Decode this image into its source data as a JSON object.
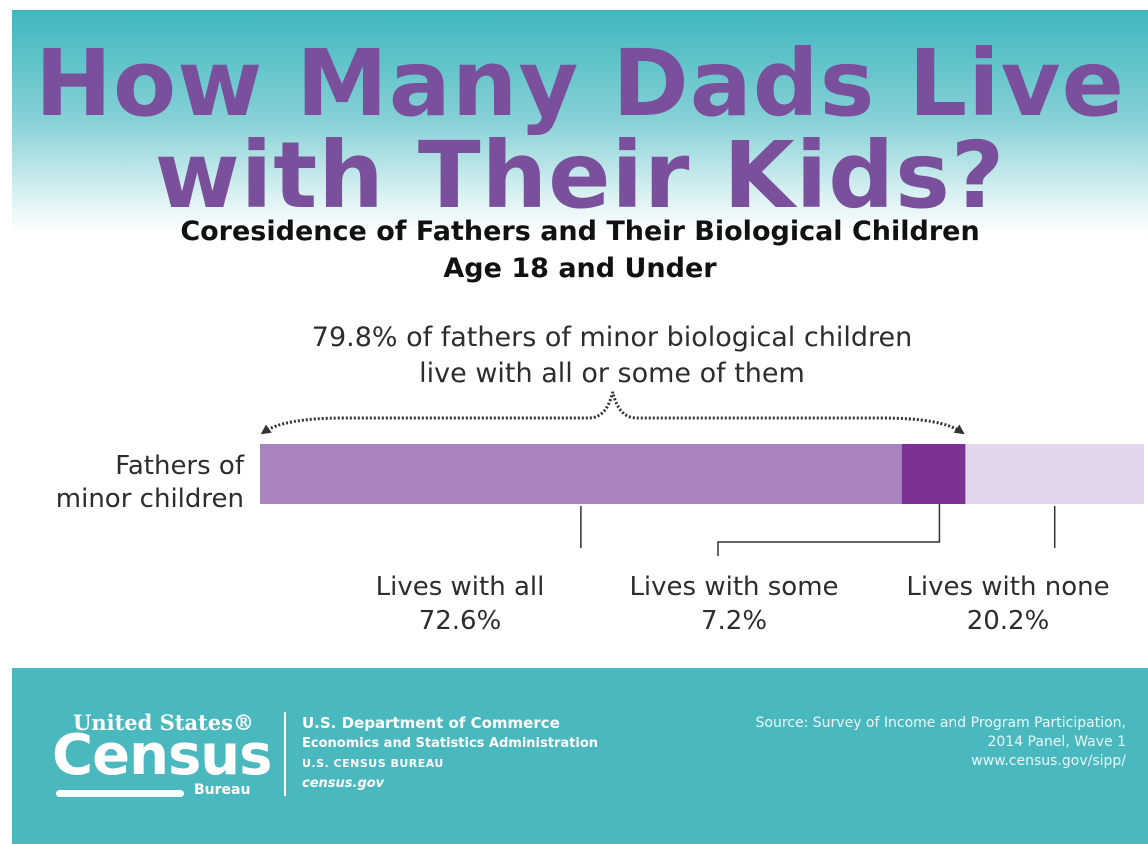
{
  "title": {
    "line1": "How Many Dads Live",
    "line2": "with Their Kids?"
  },
  "subtitle": {
    "line1": "Coresidence of Fathers and Their Biological Children",
    "line2": "Age 18 and Under"
  },
  "annotation": {
    "line1": "79.8% of fathers of minor biological children",
    "line2": "live with all or some of them"
  },
  "colors": {
    "title": "#7a4f9b",
    "lives_with_all": "#a883bd",
    "lives_with_some": "#7b3294",
    "lives_with_none": "#e3d5ea",
    "footer": "#4ab9bf"
  },
  "chart_data": {
    "type": "bar",
    "orientation": "horizontal",
    "stacked": true,
    "categories": [
      "Fathers of minor children"
    ],
    "category_label_lines": [
      "Fathers of",
      "minor children"
    ],
    "series": [
      {
        "name": "Lives with all",
        "values": [
          72.6
        ],
        "value_label": "72.6%",
        "color": "#a883bd"
      },
      {
        "name": "Lives with some",
        "values": [
          7.2
        ],
        "value_label": "7.2%",
        "color": "#7b3294"
      },
      {
        "name": "Lives with none",
        "values": [
          20.2
        ],
        "value_label": "20.2%",
        "color": "#e3d5ea"
      }
    ],
    "xlim": [
      0,
      100
    ],
    "annotation_range": [
      0,
      79.8
    ],
    "axes_visible": false,
    "grid": false
  },
  "footer": {
    "logo": {
      "top": "United States®",
      "main": "Census",
      "bottom": "Bureau"
    },
    "dept": {
      "line1": "U.S. Department of Commerce",
      "line2": "Economics and Statistics Administration",
      "line3": "U.S. CENSUS BUREAU",
      "line4": "census.gov"
    },
    "source": {
      "line1": "Source: Survey of Income and Program Participation,",
      "line2": "2014 Panel, Wave 1",
      "line3": "www.census.gov/sipp/"
    }
  }
}
